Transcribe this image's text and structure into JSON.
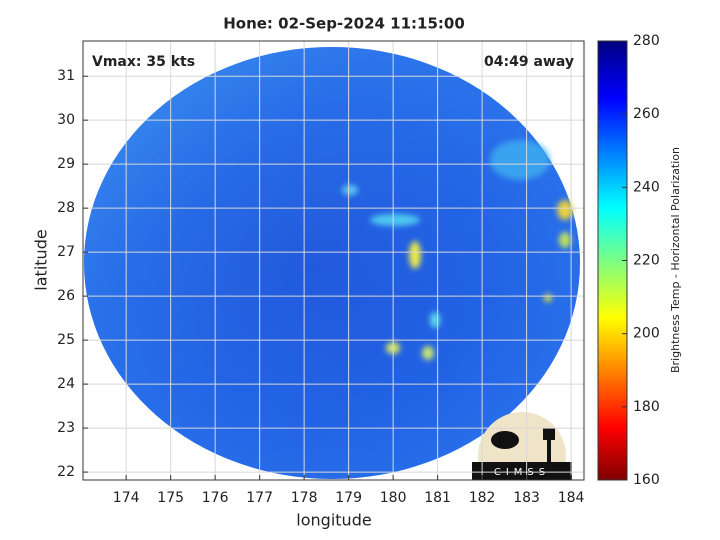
{
  "chart_data": {
    "type": "image",
    "title": "Hone: 02-Sep-2024 11:15:00",
    "xlabel": "longitude",
    "ylabel": "latitude",
    "annotations": [
      "Vmax: 35 kts",
      "04:49 away"
    ],
    "logo_text": "CIMSS",
    "xlim": [
      173.03,
      184.29
    ],
    "xticks": [
      174,
      175,
      176,
      177,
      178,
      179,
      180,
      181,
      182,
      183,
      184
    ],
    "ylim": [
      21.82,
      31.8
    ],
    "yticks": [
      22,
      23,
      24,
      25,
      26,
      27,
      28,
      29,
      30,
      31
    ],
    "grid": true,
    "colorbar": {
      "label": "Brightness Temp - Horizontal Polarization",
      "lim": [
        160,
        280
      ],
      "ticks": [
        160,
        180,
        200,
        220,
        240,
        260,
        280
      ]
    }
  }
}
